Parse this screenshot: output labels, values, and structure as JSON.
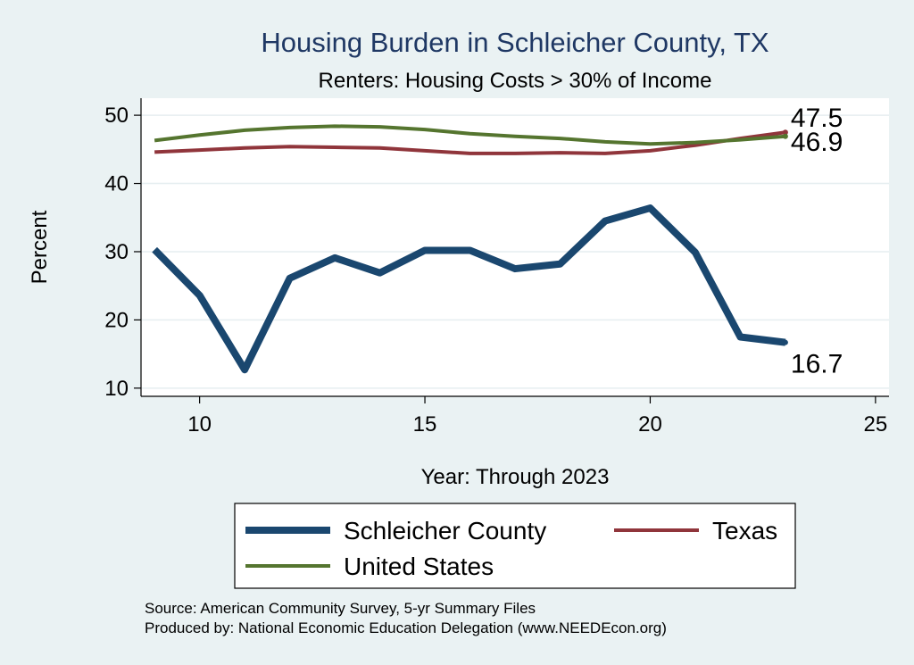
{
  "chart_data": {
    "type": "line",
    "title": "Housing Burden in Schleicher County, TX",
    "subtitle": "Renters: Housing Costs > 30% of Income",
    "xlabel": "Year: Through 2023",
    "ylabel": "Percent",
    "xlim": [
      8.7,
      25.3
    ],
    "ylim": [
      8.8,
      52.5
    ],
    "xticks": [
      10,
      15,
      20,
      25
    ],
    "yticks": [
      10,
      20,
      30,
      40,
      50
    ],
    "x": [
      9,
      10,
      11,
      12,
      13,
      14,
      15,
      16,
      17,
      18,
      19,
      20,
      21,
      22,
      23
    ],
    "series": [
      {
        "name": "Schleicher County",
        "color": "#1a476f",
        "values": [
          30.3,
          23.6,
          12.7,
          26.1,
          29.1,
          26.9,
          30.2,
          30.2,
          27.5,
          28.2,
          34.5,
          36.4,
          29.9,
          17.5,
          16.7
        ],
        "end_label": "16.7"
      },
      {
        "name": "Texas",
        "color": "#90353b",
        "values": [
          44.6,
          44.9,
          45.2,
          45.4,
          45.3,
          45.2,
          44.8,
          44.4,
          44.4,
          44.5,
          44.4,
          44.8,
          45.6,
          46.6,
          47.5
        ],
        "end_label": "47.5"
      },
      {
        "name": "United States",
        "color": "#55752f",
        "values": [
          46.3,
          47.1,
          47.8,
          48.2,
          48.4,
          48.3,
          47.9,
          47.3,
          46.9,
          46.6,
          46.1,
          45.8,
          46.0,
          46.4,
          46.9
        ],
        "end_label": "46.9"
      }
    ],
    "legend": {
      "position": "bottom",
      "entries": [
        "Schleicher County",
        "Texas",
        "United States"
      ]
    },
    "source_lines": [
      "Source: American Community Survey, 5-yr Summary Files",
      "Produced by: National Economic Education Delegation (www.NEEDEcon.org)"
    ]
  }
}
